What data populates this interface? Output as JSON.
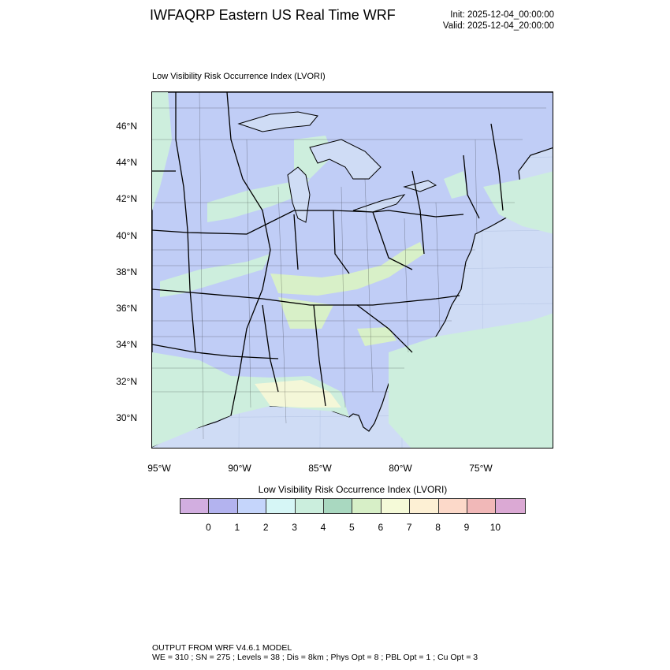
{
  "header": {
    "title": "IWFAQRP Eastern US Real Time WRF",
    "init": "Init: 2025-12-04_00:00:00",
    "valid": "Valid: 2025-12-04_20:00:00"
  },
  "map": {
    "subtitle": "Low Visibility Risk Occurrence Index   (LVORI)",
    "lat_labels": [
      "46°N",
      "44°N",
      "42°N",
      "40°N",
      "38°N",
      "36°N",
      "34°N",
      "32°N",
      "30°N"
    ],
    "lon_labels": [
      "95°W",
      "90°W",
      "85°W",
      "80°W",
      "75°W"
    ],
    "colors": {
      "ocean": "#cfdcf5",
      "land": "#c0cdf6",
      "low_risk_green": "#cdeedd",
      "mid_risk_green": "#d8f0c8",
      "high_risk_yellow": "#f4f7d8",
      "state_border": "#000000"
    }
  },
  "colorbar": {
    "title": "Low Visibility Risk Occurrence Index  (LVORI)",
    "labels": [
      "0",
      "1",
      "2",
      "3",
      "4",
      "5",
      "6",
      "7",
      "8",
      "9",
      "10"
    ],
    "colors": [
      "#d2aee0",
      "#b3b3ef",
      "#c5d5fb",
      "#d6f6f6",
      "#cbeedd",
      "#a9d8c0",
      "#d7efc7",
      "#f5fad8",
      "#fdf0d4",
      "#fcd9c9",
      "#f1b8b8",
      "#dba9d4"
    ]
  },
  "footer": {
    "line1": "OUTPUT FROM WRF V4.6.1 MODEL",
    "line2": "WE = 310 ; SN = 275 ; Levels = 38 ; Dis = 8km ; Phys Opt = 8 ; PBL Opt = 1 ; Cu Opt = 3"
  }
}
